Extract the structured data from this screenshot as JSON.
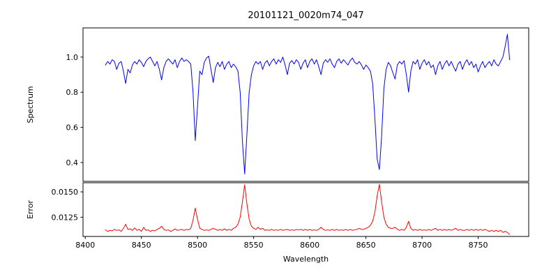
{
  "figure": {
    "title": "20101121_0020m74_047",
    "xlabel": "Wavelength",
    "background": "#ffffff",
    "axis_color": "#000000"
  },
  "chart_data": [
    {
      "type": "line",
      "panel": "spectrum",
      "title": "20101121_0020m74_047",
      "ylabel": "Spectrum",
      "xlabel": "",
      "grid": false,
      "legend": "none",
      "xlim": [
        8398,
        8795
      ],
      "ylim": [
        0.293,
        1.166
      ],
      "yticks": [
        0.4,
        0.6,
        0.8,
        1.0
      ],
      "ytick_labels": [
        "0.4",
        "0.6",
        "0.8",
        "1.0"
      ],
      "xticks": [],
      "xtick_labels": [],
      "series": [
        {
          "name": "spectrum",
          "color": "#0000ff",
          "x_start": 8418,
          "x_step": 2,
          "y": [
            0.955,
            0.975,
            0.96,
            0.985,
            0.975,
            0.93,
            0.965,
            0.975,
            0.92,
            0.85,
            0.93,
            0.91,
            0.955,
            0.975,
            0.96,
            0.985,
            0.97,
            0.945,
            0.975,
            0.99,
            1.0,
            0.975,
            0.95,
            0.975,
            0.93,
            0.87,
            0.94,
            0.975,
            0.99,
            0.975,
            0.96,
            0.985,
            0.94,
            0.975,
            0.995,
            0.975,
            0.985,
            0.975,
            0.96,
            0.8,
            0.525,
            0.72,
            0.92,
            0.9,
            0.97,
            0.995,
            1.005,
            0.93,
            0.855,
            0.94,
            0.97,
            0.945,
            0.975,
            0.93,
            0.96,
            0.975,
            0.94,
            0.96,
            0.945,
            0.92,
            0.8,
            0.52,
            0.335,
            0.56,
            0.8,
            0.9,
            0.95,
            0.975,
            0.96,
            0.975,
            0.93,
            0.965,
            0.98,
            0.95,
            0.975,
            0.99,
            0.96,
            0.985,
            0.97,
            1.0,
            0.955,
            0.9,
            0.965,
            0.98,
            0.96,
            0.985,
            0.97,
            0.93,
            0.965,
            0.985,
            0.94,
            0.975,
            0.99,
            0.96,
            0.985,
            0.945,
            0.9,
            0.965,
            0.985,
            0.97,
            0.99,
            0.96,
            0.94,
            0.975,
            0.99,
            0.965,
            0.985,
            0.97,
            0.955,
            0.98,
            0.995,
            0.97,
            0.96,
            0.975,
            0.955,
            0.93,
            0.955,
            0.94,
            0.92,
            0.85,
            0.65,
            0.42,
            0.36,
            0.55,
            0.82,
            0.93,
            0.97,
            0.95,
            0.91,
            0.875,
            0.955,
            0.975,
            0.96,
            0.98,
            0.9,
            0.8,
            0.92,
            0.975,
            0.96,
            0.985,
            0.93,
            0.965,
            0.985,
            0.955,
            0.975,
            0.94,
            0.955,
            0.9,
            0.95,
            0.975,
            0.93,
            0.96,
            0.98,
            0.95,
            0.975,
            0.945,
            0.92,
            0.96,
            0.975,
            0.93,
            0.965,
            0.985,
            0.955,
            0.975,
            0.94,
            0.96,
            0.915,
            0.95,
            0.975,
            0.94,
            0.96,
            0.975,
            0.95,
            0.985,
            0.96,
            0.95,
            0.975,
            1.0,
            1.06,
            1.13,
            0.985
          ]
        }
      ]
    },
    {
      "type": "line",
      "panel": "error",
      "title": "",
      "ylabel": "Error",
      "xlabel": "Wavelength",
      "grid": false,
      "legend": "none",
      "xlim": [
        8398,
        8795
      ],
      "ylim": [
        0.0106,
        0.0159
      ],
      "yticks": [
        0.0125,
        0.015
      ],
      "ytick_labels": [
        "0.0125",
        "0.0150"
      ],
      "xticks": [
        8400,
        8450,
        8500,
        8550,
        8600,
        8650,
        8700,
        8750
      ],
      "xtick_labels": [
        "8400",
        "8450",
        "8500",
        "8550",
        "8600",
        "8650",
        "8700",
        "8750"
      ],
      "series": [
        {
          "name": "error",
          "color": "#ff0000",
          "x_start": 8418,
          "x_step": 2,
          "y": [
            0.01125,
            0.0111,
            0.0112,
            0.01115,
            0.0113,
            0.0112,
            0.01125,
            0.0111,
            0.0114,
            0.0118,
            0.0113,
            0.01135,
            0.0112,
            0.01145,
            0.0112,
            0.0113,
            0.0111,
            0.0115,
            0.0112,
            0.01125,
            0.0111,
            0.0112,
            0.01115,
            0.0113,
            0.0114,
            0.0116,
            0.0113,
            0.0112,
            0.01125,
            0.0111,
            0.0112,
            0.01135,
            0.0112,
            0.01125,
            0.0113,
            0.0112,
            0.0113,
            0.01125,
            0.0114,
            0.0122,
            0.0134,
            0.0123,
            0.0114,
            0.0113,
            0.0112,
            0.01125,
            0.0112,
            0.0113,
            0.0114,
            0.0113,
            0.0112,
            0.0113,
            0.0112,
            0.01135,
            0.0112,
            0.0113,
            0.0112,
            0.0114,
            0.0115,
            0.0118,
            0.0125,
            0.014,
            0.0157,
            0.0138,
            0.0123,
            0.0116,
            0.0114,
            0.0113,
            0.0115,
            0.0113,
            0.0114,
            0.0112,
            0.01125,
            0.0112,
            0.0113,
            0.0112,
            0.01125,
            0.0112,
            0.0113,
            0.0112,
            0.01125,
            0.0113,
            0.0112,
            0.01125,
            0.0112,
            0.0113,
            0.01125,
            0.0113,
            0.0112,
            0.0113,
            0.0112,
            0.0113,
            0.0112,
            0.01125,
            0.0112,
            0.0113,
            0.0115,
            0.0113,
            0.0112,
            0.01125,
            0.0112,
            0.0113,
            0.0112,
            0.0113,
            0.0112,
            0.01125,
            0.0112,
            0.0113,
            0.0112,
            0.0113,
            0.0112,
            0.01125,
            0.0113,
            0.0114,
            0.0113,
            0.0113,
            0.0114,
            0.0115,
            0.0117,
            0.0121,
            0.013,
            0.0146,
            0.01575,
            0.014,
            0.0125,
            0.0118,
            0.0115,
            0.0114,
            0.0114,
            0.0115,
            0.0113,
            0.0112,
            0.0113,
            0.0112,
            0.0115,
            0.0121,
            0.0114,
            0.0112,
            0.0113,
            0.0112,
            0.0113,
            0.0112,
            0.01125,
            0.0112,
            0.0113,
            0.0112,
            0.0113,
            0.0114,
            0.0112,
            0.0113,
            0.0112,
            0.0113,
            0.0112,
            0.0113,
            0.0112,
            0.0113,
            0.0114,
            0.0112,
            0.0113,
            0.0112,
            0.0112,
            0.0113,
            0.0112,
            0.0113,
            0.0112,
            0.0113,
            0.0112,
            0.0113,
            0.0112,
            0.0113,
            0.0112,
            0.0111,
            0.0112,
            0.0111,
            0.0112,
            0.0111,
            0.0112,
            0.011,
            0.0111,
            0.011,
            0.0108
          ]
        }
      ]
    }
  ]
}
